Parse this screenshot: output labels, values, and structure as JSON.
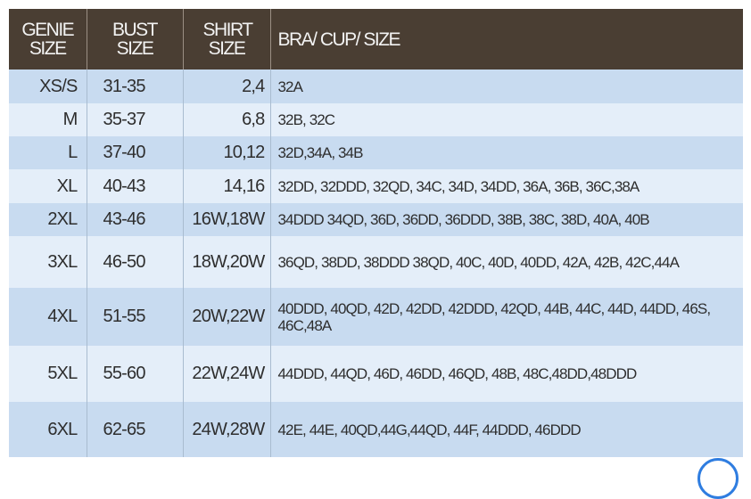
{
  "headers": {
    "genie_size": "GENIE SIZE",
    "bust_size": "BUST SIZE",
    "shirt_size": "SHIRT SIZE",
    "bra_cup_size": "BRA/ CUP/ SIZE"
  },
  "colors": {
    "header_bg": "#4a3e33",
    "row_dark": "#c8dbf0",
    "row_light": "#e4eef9"
  },
  "rows": [
    {
      "genie": "XS/S",
      "bust": "31-35",
      "shirt": "2,4",
      "bra": "32A"
    },
    {
      "genie": "M",
      "bust": "35-37",
      "shirt": "6,8",
      "bra": "32B, 32C"
    },
    {
      "genie": "L",
      "bust": "37-40",
      "shirt": "10,12",
      "bra": "32D,34A, 34B"
    },
    {
      "genie": "XL",
      "bust": "40-43",
      "shirt": "14,16",
      "bra": "32DD, 32DDD, 32QD, 34C, 34D, 34DD, 36A, 36B, 36C,38A"
    },
    {
      "genie": "2XL",
      "bust": "43-46",
      "shirt": "16W,18W",
      "bra": "34DDD 34QD, 36D, 36DD, 36DDD, 38B, 38C, 38D, 40A, 40B"
    },
    {
      "genie": "3XL",
      "bust": "46-50",
      "shirt": "18W,20W",
      "bra": "36QD, 38DD, 38DDD 38QD, 40C, 40D, 40DD, 42A, 42B, 42C,44A"
    },
    {
      "genie": "4XL",
      "bust": "51-55",
      "shirt": "20W,22W",
      "bra": "40DDD, 40QD, 42D, 42DD, 42DDD, 42QD, 44B, 44C, 44D, 44DD, 46S, 46C,48A"
    },
    {
      "genie": "5XL",
      "bust": "55-60",
      "shirt": "22W,24W",
      "bra": "44DDD, 44QD, 46D, 46DD, 46QD, 48B, 48C,48DD,48DDD"
    },
    {
      "genie": "6XL",
      "bust": "62-65",
      "shirt": "24W,28W",
      "bra": "42E, 44E, 40QD,44G,44QD, 44F, 44DDD, 46DDD"
    }
  ]
}
